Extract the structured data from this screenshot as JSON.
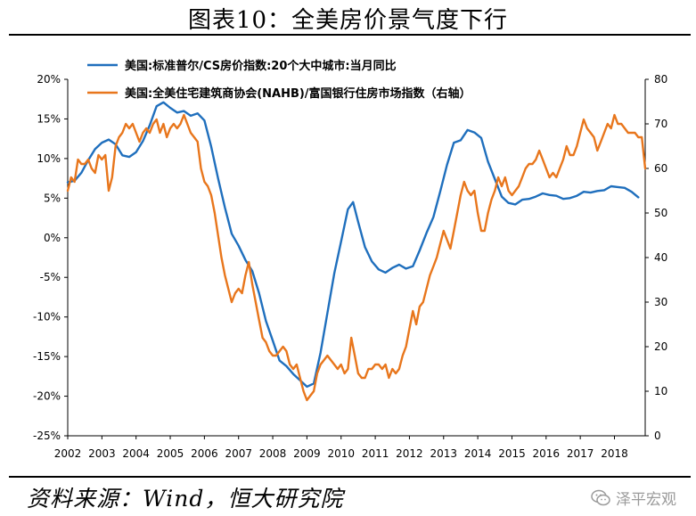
{
  "figure_title": "图表10：全美房价景气度下行",
  "source_text": "资料来源：Wind，恒大研究院",
  "watermark_text": "泽平宏观",
  "colors": {
    "blue": "#1f6fbd",
    "orange": "#e8761c",
    "axis": "#000000"
  },
  "chart_data": {
    "type": "line",
    "x_ticks": [
      "2002",
      "2003",
      "2004",
      "2005",
      "2006",
      "2007",
      "2008",
      "2009",
      "2010",
      "2011",
      "2012",
      "2013",
      "2014",
      "2015",
      "2016",
      "2017",
      "2018"
    ],
    "x_range": [
      2002.0,
      2018.9
    ],
    "y_left": {
      "range": [
        -25,
        20
      ],
      "ticks": [
        20,
        15,
        10,
        5,
        0,
        -5,
        -10,
        -15,
        -20,
        -25
      ],
      "tick_labels": [
        "20%",
        "15%",
        "10%",
        "5%",
        "0%",
        "-5%",
        "-10%",
        "-15%",
        "-20%",
        "-25%"
      ]
    },
    "y_right": {
      "range": [
        0,
        80
      ],
      "ticks": [
        80,
        70,
        60,
        50,
        40,
        30,
        20,
        10,
        0
      ],
      "tick_labels": [
        "80",
        "70",
        "60",
        "50",
        "40",
        "30",
        "20",
        "10",
        "0"
      ]
    },
    "legend_position": "top",
    "grid": false,
    "series": [
      {
        "name": "美国:标准普尔/CS房价指数:20个大中城市:当月同比",
        "axis": "left",
        "color": "#1f6fbd",
        "points": [
          [
            2002.0,
            7.0
          ],
          [
            2002.2,
            7.2
          ],
          [
            2002.4,
            8.2
          ],
          [
            2002.6,
            9.8
          ],
          [
            2002.8,
            11.2
          ],
          [
            2003.0,
            12.0
          ],
          [
            2003.2,
            12.4
          ],
          [
            2003.4,
            11.8
          ],
          [
            2003.6,
            10.4
          ],
          [
            2003.8,
            10.2
          ],
          [
            2004.0,
            10.8
          ],
          [
            2004.2,
            12.2
          ],
          [
            2004.4,
            14.2
          ],
          [
            2004.6,
            16.6
          ],
          [
            2004.8,
            17.1
          ],
          [
            2005.0,
            16.4
          ],
          [
            2005.2,
            15.8
          ],
          [
            2005.4,
            16.0
          ],
          [
            2005.6,
            15.4
          ],
          [
            2005.8,
            15.7
          ],
          [
            2006.0,
            14.8
          ],
          [
            2006.2,
            11.5
          ],
          [
            2006.4,
            7.5
          ],
          [
            2006.6,
            3.8
          ],
          [
            2006.8,
            0.5
          ],
          [
            2007.0,
            -1.0
          ],
          [
            2007.2,
            -2.8
          ],
          [
            2007.4,
            -4.2
          ],
          [
            2007.6,
            -7.0
          ],
          [
            2007.8,
            -10.5
          ],
          [
            2008.0,
            -13.0
          ],
          [
            2008.2,
            -15.5
          ],
          [
            2008.4,
            -16.2
          ],
          [
            2008.6,
            -17.2
          ],
          [
            2008.8,
            -18.0
          ],
          [
            2009.0,
            -18.8
          ],
          [
            2009.2,
            -18.4
          ],
          [
            2009.4,
            -14.5
          ],
          [
            2009.6,
            -9.5
          ],
          [
            2009.8,
            -4.5
          ],
          [
            2010.0,
            -0.5
          ],
          [
            2010.2,
            3.6
          ],
          [
            2010.35,
            4.5
          ],
          [
            2010.5,
            2.0
          ],
          [
            2010.7,
            -1.2
          ],
          [
            2010.9,
            -3.0
          ],
          [
            2011.1,
            -4.0
          ],
          [
            2011.3,
            -4.4
          ],
          [
            2011.5,
            -3.8
          ],
          [
            2011.7,
            -3.4
          ],
          [
            2011.9,
            -3.9
          ],
          [
            2012.1,
            -3.6
          ],
          [
            2012.3,
            -1.6
          ],
          [
            2012.5,
            0.6
          ],
          [
            2012.7,
            2.6
          ],
          [
            2012.9,
            5.8
          ],
          [
            2013.1,
            9.2
          ],
          [
            2013.3,
            12.0
          ],
          [
            2013.5,
            12.3
          ],
          [
            2013.7,
            13.6
          ],
          [
            2013.9,
            13.3
          ],
          [
            2014.1,
            12.6
          ],
          [
            2014.3,
            9.6
          ],
          [
            2014.5,
            7.4
          ],
          [
            2014.7,
            5.2
          ],
          [
            2014.9,
            4.4
          ],
          [
            2015.1,
            4.2
          ],
          [
            2015.3,
            4.8
          ],
          [
            2015.5,
            4.9
          ],
          [
            2015.7,
            5.2
          ],
          [
            2015.9,
            5.6
          ],
          [
            2016.1,
            5.4
          ],
          [
            2016.3,
            5.3
          ],
          [
            2016.5,
            4.9
          ],
          [
            2016.7,
            5.0
          ],
          [
            2016.9,
            5.3
          ],
          [
            2017.1,
            5.8
          ],
          [
            2017.3,
            5.7
          ],
          [
            2017.5,
            5.9
          ],
          [
            2017.7,
            6.0
          ],
          [
            2017.9,
            6.5
          ],
          [
            2018.1,
            6.4
          ],
          [
            2018.3,
            6.3
          ],
          [
            2018.5,
            5.8
          ],
          [
            2018.7,
            5.1
          ]
        ]
      },
      {
        "name": "美国:全美住宅建筑商协会(NAHB)/富国银行住房市场指数（右轴）",
        "axis": "right",
        "color": "#e8761c",
        "points": [
          [
            2002.0,
            55
          ],
          [
            2002.1,
            58
          ],
          [
            2002.2,
            57
          ],
          [
            2002.3,
            62
          ],
          [
            2002.4,
            61
          ],
          [
            2002.5,
            61
          ],
          [
            2002.6,
            62
          ],
          [
            2002.7,
            60
          ],
          [
            2002.8,
            59
          ],
          [
            2002.9,
            63
          ],
          [
            2003.0,
            62
          ],
          [
            2003.1,
            63
          ],
          [
            2003.2,
            55
          ],
          [
            2003.3,
            58
          ],
          [
            2003.4,
            65
          ],
          [
            2003.5,
            67
          ],
          [
            2003.6,
            68
          ],
          [
            2003.7,
            70
          ],
          [
            2003.8,
            69
          ],
          [
            2003.9,
            70
          ],
          [
            2004.0,
            68
          ],
          [
            2004.1,
            66
          ],
          [
            2004.2,
            68
          ],
          [
            2004.3,
            69
          ],
          [
            2004.4,
            68
          ],
          [
            2004.5,
            70
          ],
          [
            2004.6,
            71
          ],
          [
            2004.7,
            68
          ],
          [
            2004.8,
            70
          ],
          [
            2004.9,
            67
          ],
          [
            2005.0,
            69
          ],
          [
            2005.1,
            70
          ],
          [
            2005.2,
            69
          ],
          [
            2005.3,
            70
          ],
          [
            2005.4,
            72
          ],
          [
            2005.5,
            70
          ],
          [
            2005.6,
            68
          ],
          [
            2005.7,
            67
          ],
          [
            2005.8,
            66
          ],
          [
            2005.9,
            60
          ],
          [
            2006.0,
            57
          ],
          [
            2006.1,
            56
          ],
          [
            2006.2,
            54
          ],
          [
            2006.3,
            50
          ],
          [
            2006.4,
            45
          ],
          [
            2006.5,
            40
          ],
          [
            2006.6,
            36
          ],
          [
            2006.7,
            33
          ],
          [
            2006.8,
            30
          ],
          [
            2006.9,
            32
          ],
          [
            2007.0,
            33
          ],
          [
            2007.1,
            32
          ],
          [
            2007.2,
            36
          ],
          [
            2007.3,
            39
          ],
          [
            2007.4,
            34
          ],
          [
            2007.5,
            30
          ],
          [
            2007.6,
            26
          ],
          [
            2007.7,
            22
          ],
          [
            2007.8,
            21
          ],
          [
            2007.9,
            19
          ],
          [
            2008.0,
            18
          ],
          [
            2008.1,
            18
          ],
          [
            2008.2,
            19
          ],
          [
            2008.3,
            20
          ],
          [
            2008.4,
            19
          ],
          [
            2008.5,
            16
          ],
          [
            2008.6,
            15
          ],
          [
            2008.7,
            16
          ],
          [
            2008.8,
            13
          ],
          [
            2008.9,
            10
          ],
          [
            2009.0,
            8
          ],
          [
            2009.1,
            9
          ],
          [
            2009.2,
            10
          ],
          [
            2009.3,
            14
          ],
          [
            2009.4,
            16
          ],
          [
            2009.5,
            17
          ],
          [
            2009.6,
            18
          ],
          [
            2009.7,
            17
          ],
          [
            2009.8,
            16
          ],
          [
            2009.9,
            15
          ],
          [
            2010.0,
            16
          ],
          [
            2010.1,
            14
          ],
          [
            2010.2,
            15
          ],
          [
            2010.3,
            22
          ],
          [
            2010.4,
            18
          ],
          [
            2010.5,
            14
          ],
          [
            2010.6,
            13
          ],
          [
            2010.7,
            13
          ],
          [
            2010.8,
            15
          ],
          [
            2010.9,
            15
          ],
          [
            2011.0,
            16
          ],
          [
            2011.1,
            16
          ],
          [
            2011.2,
            15
          ],
          [
            2011.3,
            16
          ],
          [
            2011.4,
            13
          ],
          [
            2011.5,
            15
          ],
          [
            2011.6,
            14
          ],
          [
            2011.7,
            15
          ],
          [
            2011.8,
            18
          ],
          [
            2011.9,
            20
          ],
          [
            2012.0,
            24
          ],
          [
            2012.1,
            28
          ],
          [
            2012.2,
            25
          ],
          [
            2012.3,
            29
          ],
          [
            2012.4,
            30
          ],
          [
            2012.5,
            33
          ],
          [
            2012.6,
            36
          ],
          [
            2012.7,
            38
          ],
          [
            2012.8,
            40
          ],
          [
            2012.9,
            43
          ],
          [
            2013.0,
            46
          ],
          [
            2013.1,
            44
          ],
          [
            2013.2,
            42
          ],
          [
            2013.3,
            46
          ],
          [
            2013.4,
            50
          ],
          [
            2013.5,
            54
          ],
          [
            2013.6,
            57
          ],
          [
            2013.7,
            55
          ],
          [
            2013.8,
            54
          ],
          [
            2013.9,
            55
          ],
          [
            2014.0,
            50
          ],
          [
            2014.1,
            46
          ],
          [
            2014.2,
            46
          ],
          [
            2014.3,
            50
          ],
          [
            2014.4,
            53
          ],
          [
            2014.5,
            55
          ],
          [
            2014.6,
            58
          ],
          [
            2014.7,
            56
          ],
          [
            2014.8,
            58
          ],
          [
            2014.9,
            55
          ],
          [
            2015.0,
            54
          ],
          [
            2015.1,
            55
          ],
          [
            2015.2,
            56
          ],
          [
            2015.3,
            58
          ],
          [
            2015.4,
            60
          ],
          [
            2015.5,
            61
          ],
          [
            2015.6,
            61
          ],
          [
            2015.7,
            62
          ],
          [
            2015.8,
            64
          ],
          [
            2015.9,
            62
          ],
          [
            2016.0,
            60
          ],
          [
            2016.1,
            58
          ],
          [
            2016.2,
            59
          ],
          [
            2016.3,
            58
          ],
          [
            2016.4,
            60
          ],
          [
            2016.5,
            62
          ],
          [
            2016.6,
            65
          ],
          [
            2016.7,
            63
          ],
          [
            2016.8,
            63
          ],
          [
            2016.9,
            65
          ],
          [
            2017.0,
            68
          ],
          [
            2017.1,
            71
          ],
          [
            2017.2,
            69
          ],
          [
            2017.3,
            68
          ],
          [
            2017.4,
            67
          ],
          [
            2017.5,
            64
          ],
          [
            2017.6,
            66
          ],
          [
            2017.7,
            68
          ],
          [
            2017.8,
            70
          ],
          [
            2017.9,
            69
          ],
          [
            2018.0,
            72
          ],
          [
            2018.1,
            70
          ],
          [
            2018.2,
            70
          ],
          [
            2018.3,
            69
          ],
          [
            2018.4,
            68
          ],
          [
            2018.5,
            68
          ],
          [
            2018.6,
            68
          ],
          [
            2018.7,
            67
          ],
          [
            2018.8,
            67
          ],
          [
            2018.9,
            60
          ]
        ]
      }
    ]
  }
}
